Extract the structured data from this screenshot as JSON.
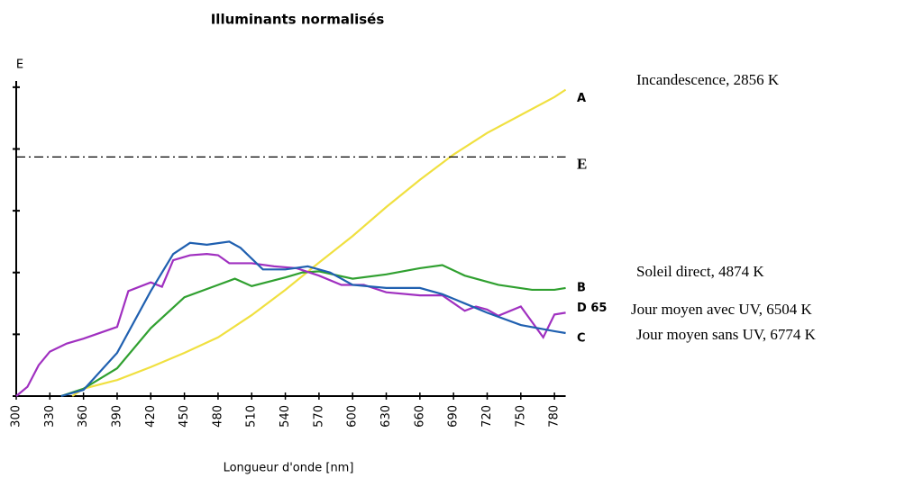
{
  "chart_data": {
    "type": "line",
    "title": "Illuminants normalisés",
    "x_label": "Longueur d'onde [nm]",
    "y_label": "E",
    "xlim": [
      300,
      790
    ],
    "xticks": [
      300,
      330,
      360,
      390,
      420,
      450,
      480,
      510,
      540,
      570,
      600,
      630,
      660,
      690,
      720,
      750,
      780
    ],
    "ylim": [
      0,
      5.1
    ],
    "yticks": [
      0,
      1,
      2,
      3,
      4,
      5
    ],
    "series": [
      {
        "name": "A",
        "description": "Incandescence, 2856 K",
        "color": "#f0e040",
        "dash": false,
        "x": [
          350,
          360,
          390,
          420,
          450,
          480,
          510,
          540,
          570,
          600,
          630,
          660,
          690,
          720,
          750,
          780,
          790
        ],
        "values": [
          0,
          0.12,
          0.26,
          0.47,
          0.7,
          0.95,
          1.31,
          1.72,
          2.16,
          2.59,
          3.06,
          3.5,
          3.91,
          4.26,
          4.55,
          4.84,
          4.96
        ]
      },
      {
        "name": "E",
        "color": "#000000",
        "dash": true,
        "x": [
          300,
          790
        ],
        "values": [
          3.87,
          3.87
        ]
      },
      {
        "name": "B",
        "description": "Soleil direct, 4874 K",
        "color": "#30a030",
        "dash": false,
        "x": [
          340,
          360,
          390,
          420,
          450,
          480,
          495,
          510,
          540,
          555,
          570,
          600,
          630,
          660,
          680,
          700,
          730,
          760,
          780,
          790
        ],
        "values": [
          0,
          0.12,
          0.45,
          1.1,
          1.6,
          1.8,
          1.9,
          1.78,
          1.92,
          2.0,
          2.02,
          1.9,
          1.97,
          2.07,
          2.12,
          1.95,
          1.8,
          1.72,
          1.72,
          1.75
        ]
      },
      {
        "name": "D 65",
        "description": "Jour moyen avec UV, 6504 K",
        "color": "#a030c0",
        "dash": false,
        "x": [
          300,
          310,
          320,
          330,
          345,
          360,
          390,
          400,
          420,
          430,
          440,
          455,
          470,
          480,
          490,
          510,
          530,
          550,
          570,
          590,
          610,
          630,
          660,
          680,
          700,
          710,
          720,
          730,
          750,
          760,
          770,
          780,
          790
        ],
        "values": [
          0,
          0.15,
          0.5,
          0.72,
          0.85,
          0.93,
          1.12,
          1.7,
          1.84,
          1.77,
          2.2,
          2.28,
          2.3,
          2.28,
          2.15,
          2.15,
          2.1,
          2.07,
          1.95,
          1.8,
          1.8,
          1.68,
          1.63,
          1.63,
          1.38,
          1.45,
          1.4,
          1.3,
          1.45,
          1.2,
          0.95,
          1.32,
          1.35
        ]
      },
      {
        "name": "C",
        "description": "Jour moyen sans UV, 6774 K",
        "color": "#2060b0",
        "dash": false,
        "x": [
          340,
          360,
          390,
          420,
          440,
          455,
          470,
          490,
          500,
          520,
          540,
          560,
          580,
          600,
          630,
          660,
          680,
          700,
          720,
          750,
          780,
          790
        ],
        "values": [
          0,
          0.1,
          0.7,
          1.7,
          2.3,
          2.48,
          2.45,
          2.5,
          2.4,
          2.05,
          2.05,
          2.1,
          2.0,
          1.8,
          1.75,
          1.75,
          1.65,
          1.5,
          1.35,
          1.15,
          1.05,
          1.02
        ]
      }
    ]
  }
}
